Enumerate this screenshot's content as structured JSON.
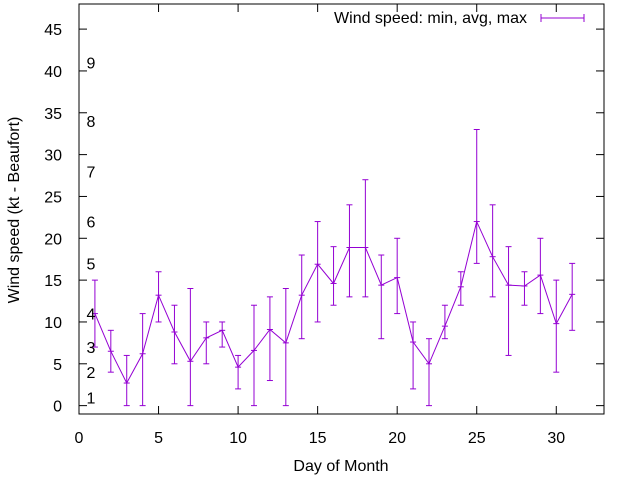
{
  "chart_data": {
    "type": "line",
    "title": "",
    "xlabel": "Day of Month",
    "ylabel": "Wind speed (kt - Beaufort)",
    "xlim": [
      0,
      33
    ],
    "ylim": [
      -1,
      48
    ],
    "x_ticks": [
      0,
      5,
      10,
      15,
      20,
      25,
      30
    ],
    "y_ticks": [
      0,
      5,
      10,
      15,
      20,
      25,
      30,
      35,
      40,
      45
    ],
    "beaufort_labels": [
      {
        "label": "1",
        "value": 1
      },
      {
        "label": "2",
        "value": 4
      },
      {
        "label": "3",
        "value": 7
      },
      {
        "label": "4",
        "value": 11
      },
      {
        "label": "5",
        "value": 17
      },
      {
        "label": "6",
        "value": 22
      },
      {
        "label": "7",
        "value": 28
      },
      {
        "label": "8",
        "value": 34
      },
      {
        "label": "9",
        "value": 41
      }
    ],
    "legend": {
      "position": "top-right"
    },
    "color": "#9400d3",
    "series": [
      {
        "name": "Wind speed: min, avg, max",
        "x": [
          1,
          2,
          3,
          4,
          5,
          6,
          7,
          8,
          9,
          10,
          11,
          12,
          13,
          14,
          15,
          16,
          17,
          18,
          19,
          20,
          21,
          22,
          23,
          24,
          25,
          26,
          27,
          28,
          29,
          30,
          31
        ],
        "avg": [
          11,
          6.5,
          2.7,
          6.2,
          13.2,
          8.8,
          5.3,
          8.1,
          9,
          4.6,
          6.6,
          9.1,
          7.5,
          13.2,
          16.9,
          14.6,
          18.9,
          18.9,
          14.4,
          15.3,
          7.6,
          5,
          9.5,
          14.2,
          22,
          17.8,
          14.4,
          14.3,
          15.6,
          9.8,
          13.3
        ],
        "min": [
          7,
          4,
          0,
          0,
          10,
          5,
          0,
          5,
          7,
          2,
          0,
          3,
          0,
          8,
          10,
          12,
          13,
          13,
          8,
          11,
          2,
          0,
          8,
          12,
          17,
          13,
          6,
          12,
          11,
          4,
          9
        ],
        "max": [
          15,
          9,
          6,
          11,
          16,
          12,
          14,
          10,
          10,
          6,
          12,
          13,
          14,
          18,
          22,
          19,
          24,
          27,
          18,
          20,
          10,
          8,
          12,
          16,
          33,
          24,
          19,
          16,
          20,
          15,
          17
        ]
      }
    ]
  }
}
